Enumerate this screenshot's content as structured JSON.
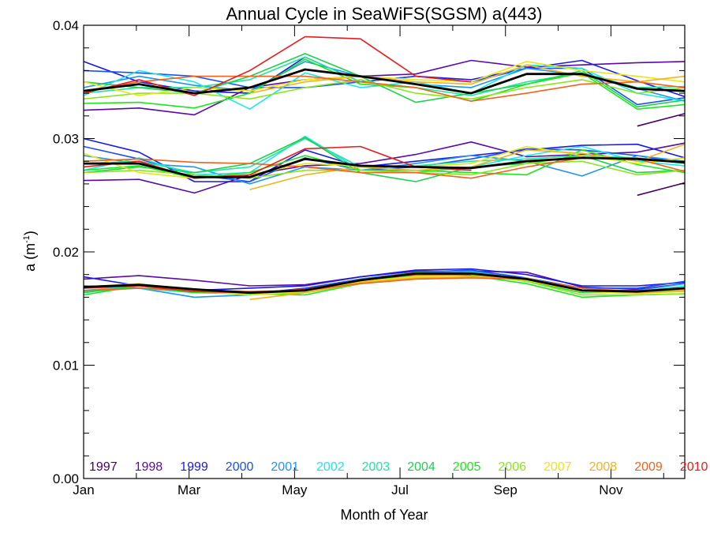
{
  "chart_data": {
    "type": "line",
    "title": "Annual Cycle in SeaWiFS(SGSM) a(443)",
    "xlabel": "Month of Year",
    "ylabel_main": "a (m",
    "ylabel_sup": "-1",
    "ylabel_close": ")",
    "xlim": [
      1,
      12.4
    ],
    "ylim": [
      0.0,
      0.04
    ],
    "xticks": [
      {
        "x": 1,
        "label": "Jan"
      },
      {
        "x": 3,
        "label": "Mar"
      },
      {
        "x": 5,
        "label": "May"
      },
      {
        "x": 7,
        "label": "Jul"
      },
      {
        "x": 9,
        "label": "Sep"
      },
      {
        "x": 11,
        "label": "Nov"
      }
    ],
    "yticks": [
      {
        "y": 0.0,
        "label": "0.00"
      },
      {
        "y": 0.01,
        "label": "0.01"
      },
      {
        "y": 0.02,
        "label": "0.02"
      },
      {
        "y": 0.03,
        "label": "0.03"
      },
      {
        "y": 0.04,
        "label": "0.04"
      }
    ],
    "grid": false,
    "legend_position": "bottom",
    "x": [
      1.0,
      2.05,
      3.1,
      4.15,
      5.2,
      6.25,
      7.3,
      8.35,
      9.4,
      10.45,
      11.5,
      12.4
    ],
    "series": [
      {
        "name": "1997",
        "color": "#4b0066",
        "upper": [
          null,
          null,
          null,
          null,
          null,
          null,
          null,
          null,
          null,
          null,
          0.0311,
          0.0322
        ],
        "middle": [
          null,
          null,
          null,
          null,
          null,
          null,
          null,
          null,
          null,
          null,
          0.025,
          0.0261
        ],
        "lower": [
          null,
          null,
          null,
          null,
          null,
          null,
          null,
          null,
          null,
          null,
          null,
          null
        ]
      },
      {
        "name": "1998",
        "color": "#5a0aa8",
        "upper": [
          0.0325,
          0.0327,
          0.0321,
          0.0345,
          0.0352,
          0.0355,
          0.0357,
          0.0369,
          0.0363,
          0.0365,
          0.0367,
          0.0368
        ],
        "middle": [
          0.0263,
          0.0264,
          0.0252,
          0.0268,
          0.0276,
          0.0278,
          0.0286,
          0.0297,
          0.0284,
          0.0286,
          0.0288,
          0.0296
        ],
        "lower": [
          0.0176,
          0.0179,
          0.0175,
          0.017,
          0.0171,
          0.0178,
          0.0183,
          0.0183,
          0.0182,
          0.0169,
          0.0167,
          0.0172
        ]
      },
      {
        "name": "1999",
        "color": "#1a1ae6",
        "upper": [
          0.0368,
          0.035,
          0.0342,
          0.034,
          0.0372,
          0.035,
          0.0355,
          0.0352,
          0.0362,
          0.0369,
          0.0351,
          0.0337
        ],
        "middle": [
          0.03,
          0.0288,
          0.0262,
          0.0262,
          0.029,
          0.0275,
          0.028,
          0.0285,
          0.029,
          0.0294,
          0.0295,
          0.0283
        ],
        "lower": [
          0.0178,
          0.017,
          0.0166,
          0.0168,
          0.017,
          0.0178,
          0.0184,
          0.0185,
          0.018,
          0.017,
          0.017,
          0.0173
        ]
      },
      {
        "name": "2000",
        "color": "#1e50f0",
        "upper": [
          0.036,
          0.0358,
          0.0355,
          0.0345,
          0.0345,
          0.035,
          0.0355,
          0.035,
          0.0362,
          0.0362,
          0.033,
          0.0336
        ],
        "middle": [
          0.0293,
          0.0282,
          0.0268,
          0.0262,
          0.0283,
          0.0272,
          0.0275,
          0.0282,
          0.0291,
          0.029,
          0.0285,
          0.0278
        ],
        "lower": [
          0.017,
          0.0168,
          0.0165,
          0.0163,
          0.0168,
          0.0176,
          0.0182,
          0.0184,
          0.0177,
          0.0168,
          0.0168,
          0.0174
        ]
      },
      {
        "name": "2001",
        "color": "#1e96f0",
        "upper": [
          0.0345,
          0.0355,
          0.0347,
          0.0342,
          0.0368,
          0.0355,
          0.0348,
          0.0345,
          0.0362,
          0.0356,
          0.0344,
          0.0333
        ],
        "middle": [
          0.0285,
          0.0278,
          0.0275,
          0.026,
          0.0275,
          0.0272,
          0.0278,
          0.0285,
          0.028,
          0.0267,
          0.0285,
          0.028
        ],
        "lower": [
          0.017,
          0.0168,
          0.016,
          0.0162,
          0.0166,
          0.0176,
          0.0182,
          0.0183,
          0.0176,
          0.0166,
          0.0166,
          0.0172
        ]
      },
      {
        "name": "2002",
        "color": "#20e6e6",
        "upper": [
          0.0338,
          0.036,
          0.035,
          0.0326,
          0.0358,
          0.0345,
          0.035,
          0.034,
          0.0365,
          0.0362,
          0.034,
          0.0333
        ],
        "middle": [
          0.0272,
          0.0283,
          0.0268,
          0.027,
          0.0302,
          0.0272,
          0.027,
          0.0275,
          0.0285,
          0.0293,
          0.028,
          0.0276
        ],
        "lower": [
          0.0166,
          0.017,
          0.0165,
          0.0164,
          0.0166,
          0.0174,
          0.018,
          0.0182,
          0.0176,
          0.0166,
          0.0165,
          0.017
        ]
      },
      {
        "name": "2003",
        "color": "#20e6a0",
        "upper": [
          0.034,
          0.0345,
          0.0345,
          0.0352,
          0.0372,
          0.035,
          0.0345,
          0.0338,
          0.035,
          0.0358,
          0.0345,
          0.0346
        ],
        "middle": [
          0.0278,
          0.028,
          0.027,
          0.0275,
          0.03,
          0.0275,
          0.0276,
          0.028,
          0.0282,
          0.0285,
          0.0283,
          0.0278
        ],
        "lower": [
          0.0165,
          0.0168,
          0.0164,
          0.0165,
          0.0166,
          0.0174,
          0.018,
          0.0181,
          0.0175,
          0.0164,
          0.0164,
          0.0168
        ]
      },
      {
        "name": "2004",
        "color": "#20d050",
        "upper": [
          0.035,
          0.0345,
          0.034,
          0.0355,
          0.0375,
          0.0355,
          0.0332,
          0.034,
          0.0348,
          0.036,
          0.0328,
          0.0334
        ],
        "middle": [
          0.027,
          0.0275,
          0.027,
          0.0278,
          0.0301,
          0.027,
          0.0262,
          0.0275,
          0.0278,
          0.0285,
          0.027,
          0.0272
        ],
        "lower": [
          0.0164,
          0.017,
          0.0166,
          0.0164,
          0.0165,
          0.0175,
          0.0182,
          0.018,
          0.0174,
          0.0164,
          0.0165,
          0.0166
        ]
      },
      {
        "name": "2005",
        "color": "#1ee61e",
        "upper": [
          0.0331,
          0.0332,
          0.0327,
          0.034,
          0.037,
          0.0348,
          0.0345,
          0.0333,
          0.0348,
          0.0358,
          0.0326,
          0.033
        ],
        "middle": [
          0.0272,
          0.0276,
          0.0265,
          0.027,
          0.0285,
          0.0272,
          0.0272,
          0.027,
          0.0268,
          0.029,
          0.0277,
          0.027
        ],
        "lower": [
          0.0162,
          0.017,
          0.0164,
          0.0163,
          0.0162,
          0.0172,
          0.0181,
          0.0179,
          0.0172,
          0.016,
          0.0162,
          0.0163
        ]
      },
      {
        "name": "2006",
        "color": "#8ce61e",
        "upper": [
          0.0335,
          0.034,
          0.034,
          0.0335,
          0.0345,
          0.0352,
          0.034,
          0.0335,
          0.0345,
          0.0352,
          0.034,
          0.0345
        ],
        "middle": [
          0.027,
          0.0272,
          0.0268,
          0.0265,
          0.0272,
          0.0272,
          0.027,
          0.0268,
          0.0278,
          0.028,
          0.0268,
          0.0272
        ],
        "lower": [
          0.0168,
          0.017,
          0.0165,
          0.0162,
          0.0164,
          0.0172,
          0.0179,
          0.018,
          0.0174,
          0.0162,
          0.0162,
          0.0163
        ]
      },
      {
        "name": "2007",
        "color": "#e6e61e",
        "upper": [
          0.035,
          0.0338,
          0.0345,
          0.0342,
          0.0352,
          0.0355,
          0.0352,
          0.035,
          0.0368,
          0.036,
          0.0355,
          0.035
        ],
        "middle": [
          0.0287,
          0.027,
          0.0265,
          0.0268,
          0.0278,
          0.0276,
          0.0275,
          0.0278,
          0.0293,
          0.0285,
          0.0278,
          0.0283
        ],
        "lower": [
          0.0169,
          0.0172,
          0.0166,
          0.0162,
          0.0165,
          0.0174,
          0.0178,
          0.0178,
          0.0175,
          0.0165,
          0.0163,
          0.0166
        ]
      },
      {
        "name": "2008",
        "color": "#f0b41e",
        "upper": [
          null,
          null,
          null,
          0.034,
          0.035,
          0.0355,
          0.035,
          0.0348,
          0.0365,
          0.0355,
          0.035,
          0.0355
        ],
        "middle": [
          null,
          null,
          null,
          0.0255,
          0.0268,
          0.0275,
          0.0272,
          0.0275,
          0.029,
          0.0287,
          0.028,
          0.0295
        ],
        "lower": [
          null,
          null,
          null,
          0.0158,
          0.0164,
          0.0173,
          0.0177,
          0.0178,
          0.0177,
          0.0166,
          0.0164,
          0.0165
        ]
      },
      {
        "name": "2009",
        "color": "#f0641e",
        "upper": [
          0.0342,
          0.035,
          0.0355,
          0.0355,
          0.0355,
          0.035,
          0.0345,
          0.0333,
          0.034,
          0.0348,
          0.035,
          0.0345
        ],
        "middle": [
          0.028,
          0.0282,
          0.0279,
          0.0278,
          0.0275,
          0.027,
          0.027,
          0.0265,
          0.0275,
          0.0283,
          0.0282,
          0.0271
        ],
        "lower": [
          0.0166,
          0.0168,
          0.0166,
          0.0165,
          0.0166,
          0.0172,
          0.0176,
          0.0177,
          0.0176,
          0.0168,
          0.0165,
          0.0167
        ]
      },
      {
        "name": "2010",
        "color": "#e61e1e",
        "upper": [
          0.034,
          0.0352,
          0.0338,
          0.036,
          0.039,
          0.0388,
          0.0355,
          0.035,
          null,
          null,
          null,
          null
        ],
        "middle": [
          0.0275,
          0.028,
          0.0265,
          0.0268,
          0.0291,
          0.0293,
          0.0275,
          0.0272,
          null,
          null,
          null,
          null
        ],
        "lower": [
          0.0168,
          0.017,
          0.0165,
          0.0164,
          0.0167,
          0.0175,
          0.018,
          0.018,
          null,
          null,
          null,
          null
        ]
      }
    ],
    "mean": {
      "color": "#000000",
      "upper": [
        0.0342,
        0.0348,
        0.034,
        0.0345,
        0.0361,
        0.0355,
        0.0348,
        0.034,
        0.0357,
        0.0357,
        0.0344,
        0.0342
      ],
      "middle": [
        0.0278,
        0.0278,
        0.0266,
        0.0266,
        0.0282,
        0.0276,
        0.0275,
        0.0274,
        0.028,
        0.0283,
        0.0282,
        0.0279
      ],
      "lower": [
        0.0169,
        0.0171,
        0.0167,
        0.0164,
        0.0166,
        0.0175,
        0.0181,
        0.0181,
        0.0176,
        0.0166,
        0.0165,
        0.0168
      ]
    }
  }
}
